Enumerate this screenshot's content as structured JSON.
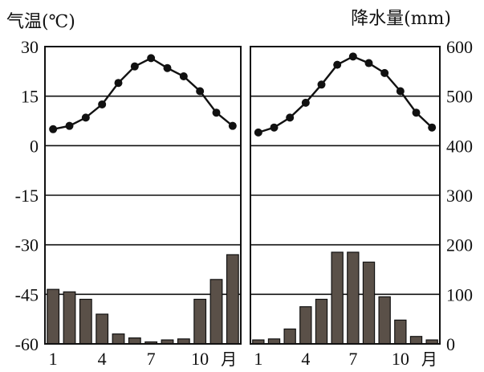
{
  "chart_data": {
    "type": "climate",
    "left_axis_title": "气温(℃)",
    "right_axis_title": "降水量(mm)",
    "temperature_ticks": [
      "30",
      "15",
      "0",
      "-15",
      "-30",
      "-45",
      "-60"
    ],
    "precipitation_ticks": [
      "600",
      "500",
      "400",
      "300",
      "200",
      "100",
      "0"
    ],
    "temperature_range": [
      -60,
      30
    ],
    "precipitation_range": [
      0,
      600
    ],
    "x_tick_labels": [
      "1",
      "4",
      "7",
      "10"
    ],
    "x_unit": "月",
    "months": [
      1,
      2,
      3,
      4,
      5,
      6,
      7,
      8,
      9,
      10,
      11,
      12
    ],
    "panels": [
      {
        "name": "climate-chart-a",
        "temperature_c": [
          5,
          6,
          8.5,
          12.5,
          19,
          24,
          26.5,
          23.5,
          21,
          16.5,
          10,
          6
        ],
        "precipitation_mm": [
          110,
          105,
          90,
          60,
          20,
          12,
          4,
          8,
          10,
          90,
          130,
          180
        ]
      },
      {
        "name": "climate-chart-b",
        "temperature_c": [
          4,
          5.5,
          8.5,
          13,
          18.5,
          24.5,
          27,
          25,
          22,
          16.5,
          10,
          5.5
        ],
        "precipitation_mm": [
          8,
          10,
          30,
          75,
          90,
          185,
          185,
          165,
          95,
          48,
          15,
          8
        ]
      }
    ]
  }
}
